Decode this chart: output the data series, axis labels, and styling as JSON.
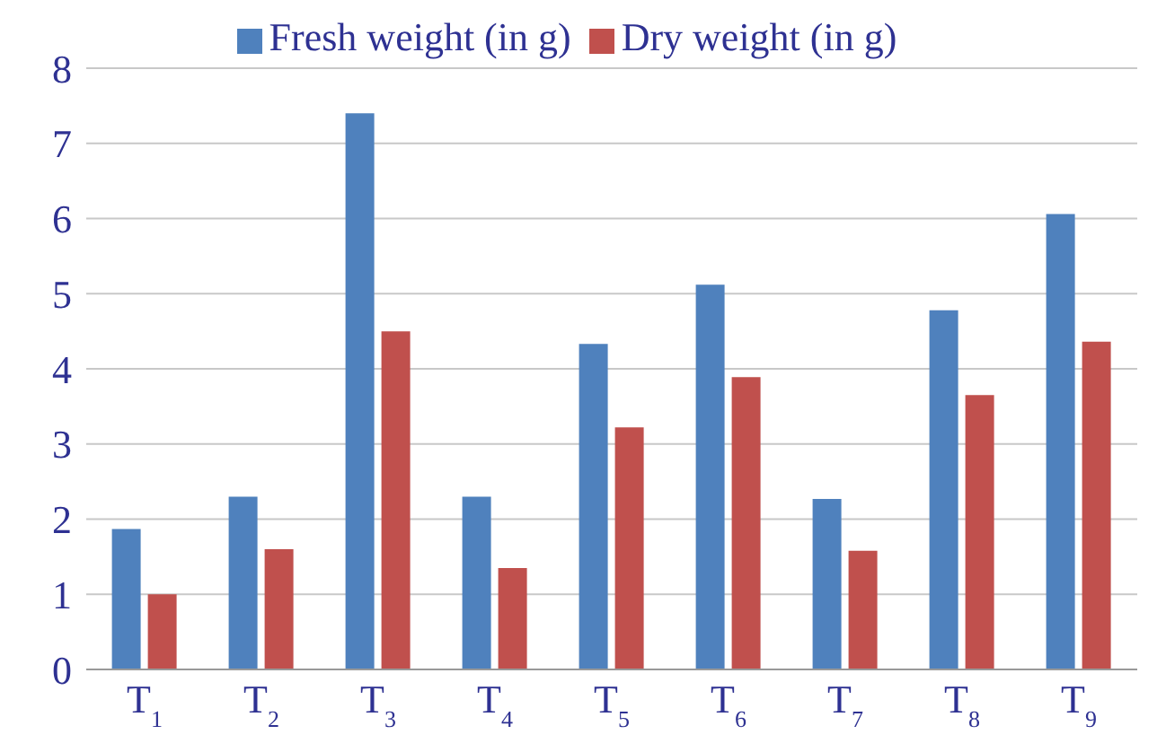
{
  "chart_data": {
    "type": "bar",
    "categories": [
      "T$_{1}$",
      "T$_{2}$",
      "T$_{3}$",
      "T$_{4}$",
      "T$_{5}$",
      "T$_{6}$",
      "T$_{7}$",
      "T$_{8}$",
      "T$_{9}$"
    ],
    "series": [
      {
        "name": "Fresh weight (in g)",
        "color": "#4f81bd",
        "values": [
          1.87,
          2.3,
          7.4,
          2.3,
          4.33,
          5.12,
          2.27,
          4.78,
          6.06
        ]
      },
      {
        "name": "Dry weight (in g)",
        "color": "#c0504d",
        "values": [
          1.0,
          1.6,
          4.5,
          1.35,
          3.22,
          3.89,
          1.58,
          3.65,
          4.36
        ]
      }
    ],
    "ylim": [
      0,
      8
    ],
    "yticks": [
      0,
      1,
      2,
      3,
      4,
      5,
      6,
      7,
      8
    ],
    "grid": "y",
    "legend": "top"
  }
}
